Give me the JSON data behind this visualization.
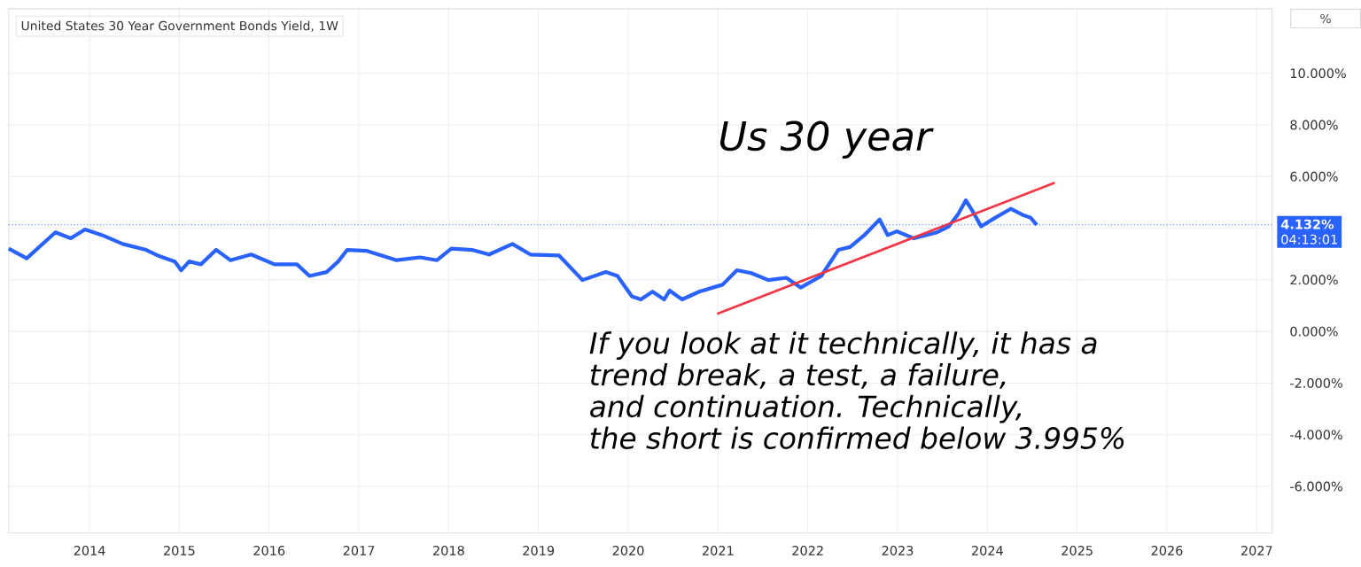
{
  "chart_data": {
    "type": "line",
    "title": "United States 30 Year Government Bonds Yield, 1W",
    "ylabel": "%",
    "annotations": [
      "Us 30 year",
      "If you look at it technically, it has a",
      "trend break, a test, a failure,",
      "and continuation. Technically,",
      "the short is confirmed below 3.995%",
      "04:13:01"
    ],
    "series": [
      {
        "color": "#2962ff",
        "x": [
          2013.1,
          2013.3,
          2013.62,
          2013.79,
          2013.95,
          2014.14,
          2014.37,
          2014.63,
          2014.76,
          2014.95,
          2015.02,
          2015.11,
          2015.24,
          2015.41,
          2015.57,
          2015.8,
          2016.06,
          2016.31,
          2016.45,
          2016.64,
          2016.77,
          2016.87,
          2017.09,
          2017.42,
          2017.68,
          2017.87,
          2018.03,
          2018.26,
          2018.45,
          2018.71,
          2018.91,
          2019.23,
          2019.49,
          2019.75,
          2019.88,
          2020.04,
          2020.14,
          2020.27,
          2020.4,
          2020.46,
          2020.6,
          2020.79,
          2021.05,
          2021.21,
          2021.37,
          2021.56,
          2021.76,
          2021.92,
          2022.15,
          2022.34,
          2022.47,
          2022.63,
          2022.8,
          2022.89,
          2022.99,
          2023.18,
          2023.44,
          2023.57,
          2023.67,
          2023.76,
          2023.84,
          2023.93,
          2024.09,
          2024.26,
          2024.39,
          2024.48,
          2024.55
        ],
        "values": [
          3.21,
          2.83,
          3.84,
          3.61,
          3.95,
          3.73,
          3.39,
          3.16,
          2.94,
          2.71,
          2.37,
          2.71,
          2.6,
          3.16,
          2.76,
          2.98,
          2.6,
          2.6,
          2.15,
          2.3,
          2.71,
          3.16,
          3.12,
          2.76,
          2.87,
          2.76,
          3.21,
          3.16,
          2.98,
          3.39,
          2.98,
          2.94,
          1.99,
          2.3,
          2.15,
          1.36,
          1.24,
          1.54,
          1.24,
          1.58,
          1.24,
          1.54,
          1.81,
          2.37,
          2.26,
          1.99,
          2.08,
          1.7,
          2.15,
          3.16,
          3.27,
          3.73,
          4.34,
          3.73,
          3.88,
          3.61,
          3.84,
          4.07,
          4.52,
          5.08,
          4.63,
          4.07,
          4.41,
          4.75,
          4.52,
          4.41,
          4.13
        ]
      },
      {
        "color": "#f23645",
        "x": [
          2020.99,
          2024.75
        ],
        "values": [
          0.68,
          5.76
        ]
      }
    ],
    "ref_lines": [
      {
        "axis": "y",
        "value": 4.132,
        "label": "4.132%",
        "color": "#2962ff",
        "line_style": "dotted"
      }
    ],
    "xlim": [
      2013.1,
      2027.17
    ],
    "ylim": [
      -7.8,
      12.5
    ],
    "xticks": [
      2014,
      2015,
      2016,
      2017,
      2018,
      2019,
      2020,
      2021,
      2022,
      2023,
      2024,
      2025,
      2026,
      2027
    ],
    "yticks": [
      {
        "value": -6,
        "label": "-6.000%"
      },
      {
        "value": -4,
        "label": "-4.000%"
      },
      {
        "value": -2,
        "label": "-2.000%"
      },
      {
        "value": 0,
        "label": "0.000%"
      },
      {
        "value": 2,
        "label": "2.000%"
      },
      {
        "value": 4,
        "label": null
      },
      {
        "value": 6,
        "label": "6.000%"
      },
      {
        "value": 8,
        "label": "8.000%"
      },
      {
        "value": 10,
        "label": "10.000%"
      }
    ],
    "grid": true,
    "marker": "none",
    "line_style": "solid"
  }
}
